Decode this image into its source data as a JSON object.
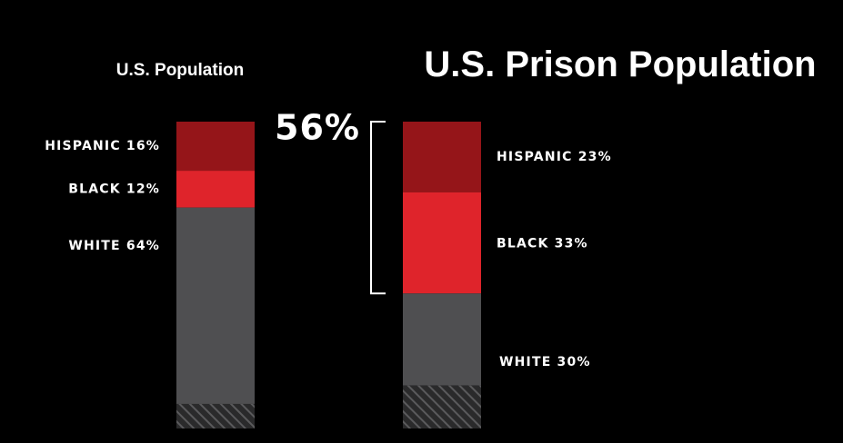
{
  "chart_data": {
    "type": "bar",
    "stacked": true,
    "percent_scale": true,
    "colors": {
      "background": "#000000",
      "hispanic": "#951519",
      "black": "#df242b",
      "white": "#4f4f51",
      "other_hatch": "#5a5a5c",
      "text": "#ffffff"
    },
    "charts": [
      {
        "title": "U.S. Population",
        "categories": [
          "HISPANIC",
          "BLACK",
          "WHITE"
        ],
        "values": [
          16,
          12,
          64
        ],
        "labels": [
          "HISPANIC 16%",
          "BLACK 12%",
          "WHITE 64%"
        ],
        "label_side": "left"
      },
      {
        "title": "U.S. Prison Population",
        "categories": [
          "HISPANIC",
          "BLACK",
          "WHITE"
        ],
        "values": [
          23,
          33,
          30
        ],
        "labels": [
          "HISPANIC 23%",
          "BLACK 33%",
          "WHITE 30%"
        ],
        "label_side": "right",
        "bracket": {
          "covers": [
            "HISPANIC",
            "BLACK"
          ],
          "label": "56%"
        }
      }
    ]
  }
}
